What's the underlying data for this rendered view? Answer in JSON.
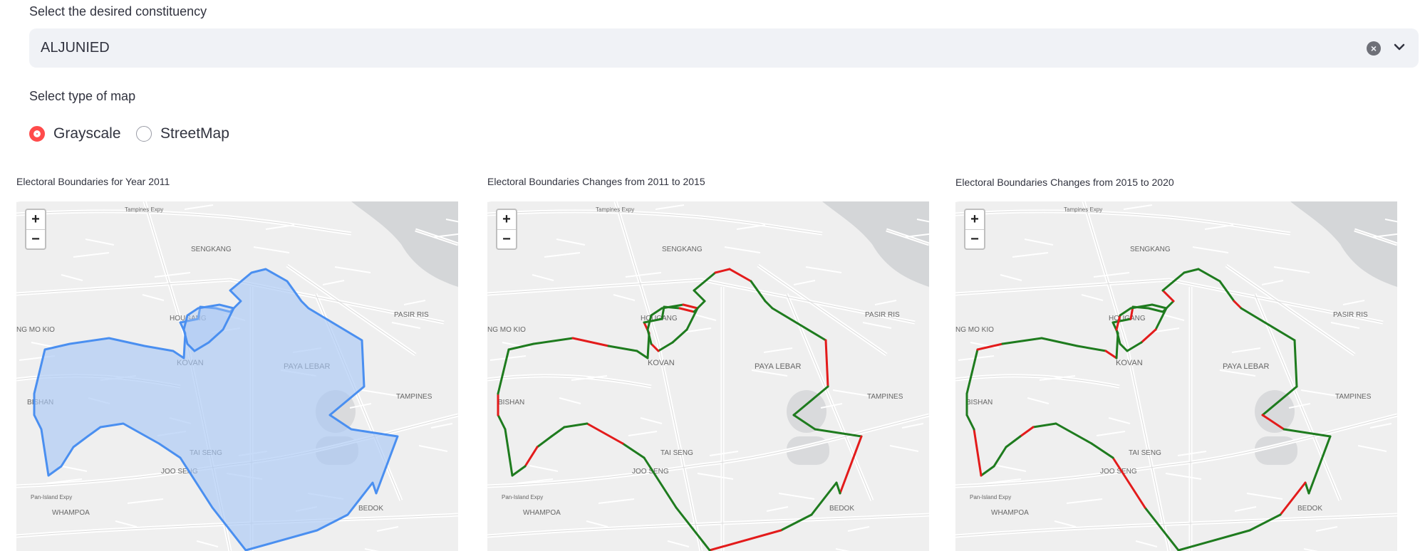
{
  "constituency": {
    "label": "Select the desired constituency",
    "selected": "ALJUNIED"
  },
  "map_type": {
    "label": "Select type of map",
    "options": [
      "Grayscale",
      "StreetMap"
    ],
    "selected": "Grayscale"
  },
  "maps": [
    {
      "title": "Electoral Boundaries for Year 2011"
    },
    {
      "title": "Electoral Boundaries Changes from 2011 to 2015"
    },
    {
      "title": "Electoral Boundaries Changes from 2015 to 2020"
    }
  ],
  "zoom": {
    "in": "+",
    "out": "−"
  },
  "place_labels": {
    "tampines_expy": "Tampines Expy",
    "sengkang": "SENGKANG",
    "hougang": "HOUGANG",
    "pasir_ris": "PASIR RIS",
    "ang_mo_kio": "NG MO KIO",
    "kovan": "KOVAN",
    "paya_lebar": "PAYA LEBAR",
    "tampines": "TAMPINES",
    "bishan": "BISHAN",
    "tai_seng": "TAI SENG",
    "joo_seng": "JOO SENG",
    "pie": "Pan-Island Expy",
    "whampoa": "WHAMPOA",
    "bedok": "BEDOK"
  },
  "colors": {
    "boundary_2011": "#4a8ff0",
    "fill_2011": "#a9c8f5",
    "unchanged": "#1e7b1e",
    "changed": "#e31b1b",
    "accent": "#ff4b4b"
  }
}
